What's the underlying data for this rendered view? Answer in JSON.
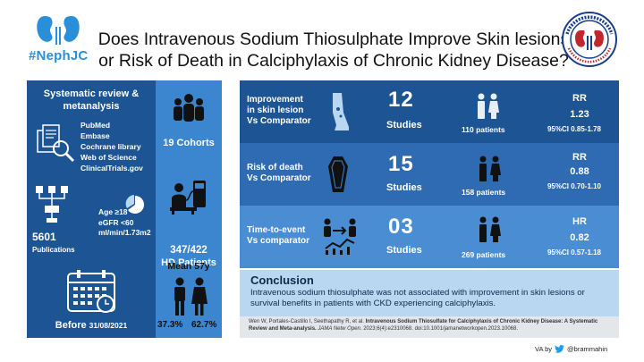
{
  "header": {
    "brand": "#NephJC",
    "title_line1": "Does Intravenous Sodium Thiosulphate Improve Skin lesions",
    "title_line2": "or Risk of Death in Calciphylaxis of Chronic Kidney Disease?",
    "seal_text": "NEPHROLOGY · SOCIAL MEDIA COLLECTIVE"
  },
  "left": {
    "review_title_1": "Systematic review &",
    "review_title_2": "metanalysis",
    "databases": [
      "PubMed",
      "Embase",
      "Cochrane library",
      "Web of Science",
      "ClinicalTrials.gov"
    ],
    "publications_count": "5601",
    "publications_label": "Publications",
    "age_line1": "Age ≥18",
    "age_line2": "eGFR <60",
    "age_line3": "ml/min/1.73m2",
    "before_label": "Before",
    "before_date": "31/08/2021"
  },
  "mid": {
    "cohorts": "19 Cohorts",
    "hd_count": "347/422",
    "hd_label": "HD Patients",
    "mean_age": "Mean 57y",
    "male_pct": "37.3%",
    "female_pct": "62.7%"
  },
  "results": [
    {
      "label": [
        "Improvement",
        "in skin lesion",
        "Vs Comparator"
      ],
      "count": "12",
      "studies": "Studies",
      "patients": "110 patients",
      "stat": "RR",
      "value": "1.23",
      "ci": "95%CI 0.85-1.78"
    },
    {
      "label": [
        "Risk of death",
        "Vs Comparator"
      ],
      "count": "15",
      "studies": "Studies",
      "patients": "158 patients",
      "stat": "RR",
      "value": "0.88",
      "ci": "95%CI 0.70-1.10"
    },
    {
      "label": [
        "Time-to-event",
        "Vs comparator"
      ],
      "count": "03",
      "studies": "Studies",
      "patients": "269 patients",
      "stat": "HR",
      "value": "0.82",
      "ci": "95%CI 0.57-1.18"
    }
  ],
  "conclusion": {
    "title": "Conclusion",
    "text": "Intravenous sodium thiosulphate was not associated with improvement in skin lesions or survival benefits in patients with CKD experiencing calciphylaxis."
  },
  "reference": {
    "authors": "Wen W, Portales-Castillo I, Seethapathy R, et al.",
    "article": "Intravenous Sodium Thiosulfate for Calciphylaxis of Chronic Kidney Disease: A Systematic Review and Meta-analysis.",
    "journal": "JAMA Netw Open.",
    "details": "2023;6(4):e2310068. doi:10.1001/jamanetworkopen.2023.10068."
  },
  "credit": {
    "prefix": "VA by",
    "handle": "@brammahin"
  },
  "colors": {
    "dark_blue": "#1c5494",
    "mid_blue": "#3c86d0",
    "light_blue": "#b9d7f0",
    "brand_blue": "#2a8fd8"
  }
}
